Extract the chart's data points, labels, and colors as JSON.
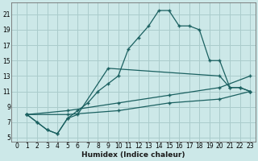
{
  "xlabel": "Humidex (Indice chaleur)",
  "background_color": "#cce8e8",
  "grid_color": "#aacccc",
  "line_color": "#1a6060",
  "xlim": [
    -0.5,
    23.5
  ],
  "ylim": [
    4.5,
    22.5
  ],
  "xticks": [
    0,
    1,
    2,
    3,
    4,
    5,
    6,
    7,
    8,
    9,
    10,
    11,
    12,
    13,
    14,
    15,
    16,
    17,
    18,
    19,
    20,
    21,
    22,
    23
  ],
  "yticks": [
    5,
    7,
    9,
    11,
    13,
    15,
    17,
    19,
    21
  ],
  "line1_x": [
    1,
    2,
    3,
    4,
    5,
    6,
    7,
    8,
    9,
    10,
    11,
    12,
    13,
    14,
    15,
    16,
    17,
    18,
    19,
    20,
    21,
    22,
    23
  ],
  "line1_y": [
    8,
    7,
    6,
    5.5,
    7.5,
    8.5,
    9.5,
    11,
    12,
    13,
    16.5,
    18,
    19.5,
    21.5,
    21.5,
    19.5,
    19.5,
    19,
    15,
    15,
    11.5,
    11.5,
    11
  ],
  "line2_x": [
    1,
    2,
    3,
    4,
    5,
    6,
    9,
    20,
    21,
    22,
    23
  ],
  "line2_y": [
    8,
    7,
    6,
    5.5,
    7.5,
    8,
    14,
    13,
    11.5,
    11.5,
    11
  ],
  "line3_x": [
    1,
    5,
    10,
    15,
    20,
    23
  ],
  "line3_y": [
    8,
    8.5,
    9.5,
    10.5,
    11.5,
    13
  ],
  "line4_x": [
    1,
    5,
    10,
    15,
    20,
    23
  ],
  "line4_y": [
    8,
    8,
    8.5,
    9.5,
    10,
    11
  ]
}
